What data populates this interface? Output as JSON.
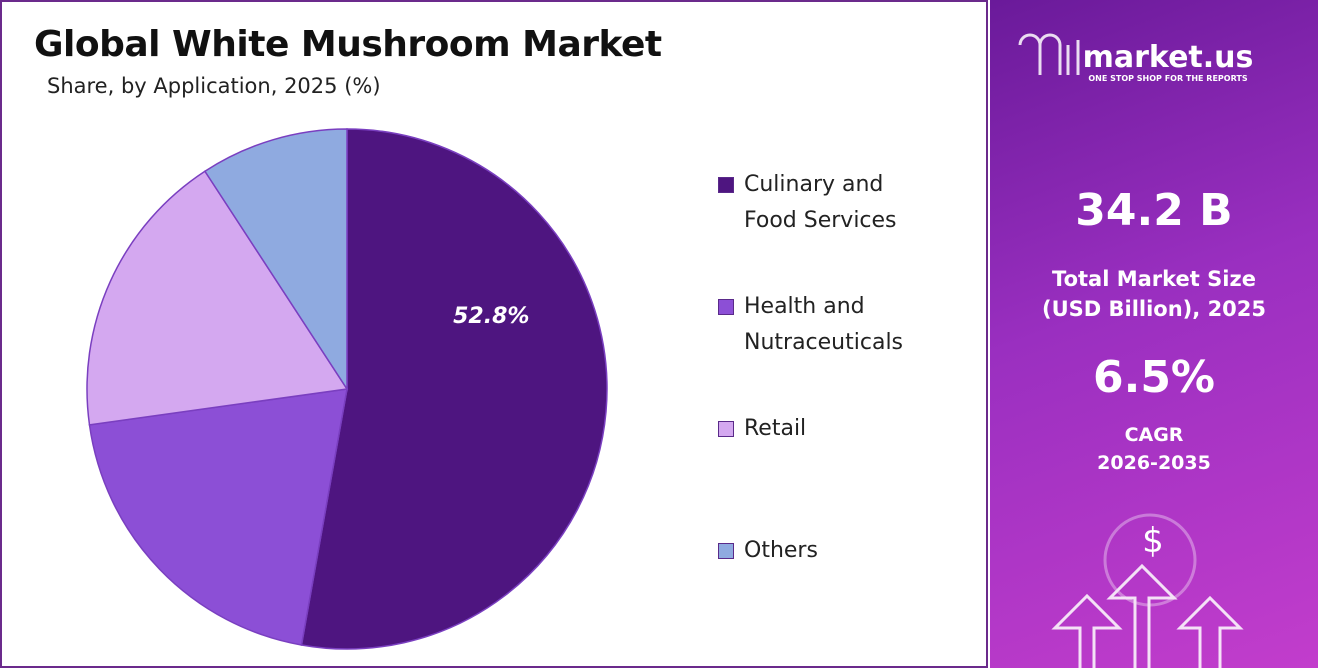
{
  "chart_data": {
    "type": "pie",
    "title": "Global White Mushroom Market",
    "subtitle": "Share, by Application, 2025 (%)",
    "categories": [
      "Culinary and Food Services",
      "Health and Nutraceuticals",
      "Retail",
      "Others"
    ],
    "values": [
      52.8,
      20.0,
      18.0,
      9.2
    ],
    "value_labels": [
      "52.8%",
      null,
      null,
      null
    ],
    "colors": [
      "#4e1580",
      "#8c4fd6",
      "#d4a8f0",
      "#8faae0"
    ],
    "legend": "right"
  },
  "side_panel": {
    "brand": "market.us",
    "tagline": "ONE STOP SHOP FOR THE REPORTS",
    "market_size": "34.2 B",
    "market_size_label": "Total Market Size (USD Billion), 2025",
    "cagr": "6.5%",
    "cagr_label": "CAGR",
    "cagr_period": "2026-2035"
  }
}
